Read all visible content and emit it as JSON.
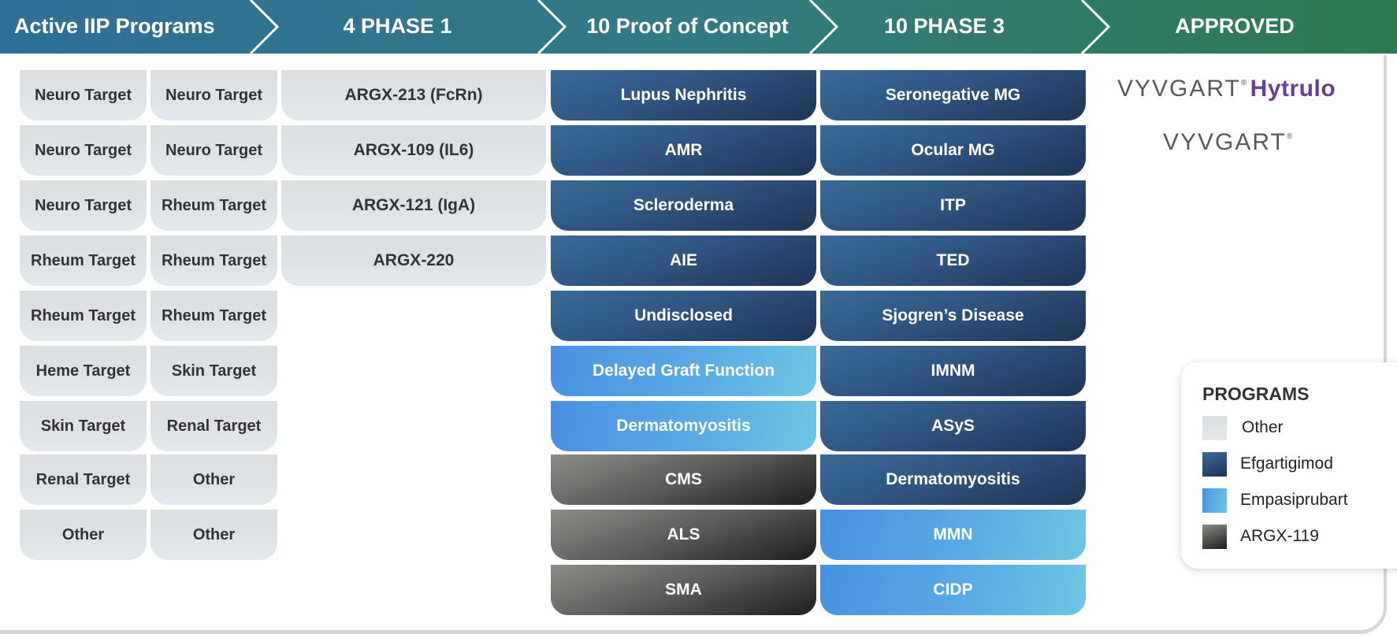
{
  "header": {
    "stages": [
      {
        "label": "Active IIP Programs"
      },
      {
        "label": "4 PHASE 1"
      },
      {
        "label": "10 Proof of Concept"
      },
      {
        "label": "10 PHASE 3"
      },
      {
        "label": "APPROVED"
      }
    ]
  },
  "iip_col1": [
    "Neuro Target",
    "Neuro Target",
    "Neuro Target",
    "Rheum Target",
    "Rheum Target",
    "Heme Target",
    "Skin Target",
    "Renal Target",
    "Other"
  ],
  "iip_col2": [
    "Neuro Target",
    "Neuro Target",
    "Rheum Target",
    "Rheum Target",
    "Rheum Target",
    "Skin Target",
    "Renal Target",
    "Other",
    "Other"
  ],
  "phase1": [
    "ARGX-213 (FcRn)",
    "ARGX-109 (IL6)",
    "ARGX-121 (IgA)",
    "ARGX-220"
  ],
  "poc": [
    {
      "label": "Lupus Nephritis",
      "program": "efg"
    },
    {
      "label": "AMR",
      "program": "efg"
    },
    {
      "label": "Scleroderma",
      "program": "efg"
    },
    {
      "label": "AIE",
      "program": "efg"
    },
    {
      "label": "Undisclosed",
      "program": "efg"
    },
    {
      "label": "Delayed Graft Function",
      "program": "emp"
    },
    {
      "label": "Dermatomyositis",
      "program": "emp"
    },
    {
      "label": "CMS",
      "program": "a119"
    },
    {
      "label": "ALS",
      "program": "a119"
    },
    {
      "label": "SMA",
      "program": "a119"
    }
  ],
  "phase3": [
    {
      "label": "Seronegative MG",
      "program": "efg"
    },
    {
      "label": "Ocular MG",
      "program": "efg"
    },
    {
      "label": "ITP",
      "program": "efg"
    },
    {
      "label": "TED",
      "program": "efg"
    },
    {
      "label": "Sjogren’s Disease",
      "program": "efg"
    },
    {
      "label": "IMNM",
      "program": "efg"
    },
    {
      "label": "ASyS",
      "program": "efg"
    },
    {
      "label": "Dermatomyositis",
      "program": "efg"
    },
    {
      "label": "MMN",
      "program": "emp"
    },
    {
      "label": "CIDP",
      "program": "emp"
    }
  ],
  "approved": {
    "logo1_word": "VYVGART",
    "logo1_suffix": "Hytrulo",
    "logo2_word": "VYVGART"
  },
  "legend": {
    "title": "PROGRAMS",
    "items": [
      {
        "label": "Other",
        "program": "other"
      },
      {
        "label": "Efgartigimod",
        "program": "efg"
      },
      {
        "label": "Empasiprubart",
        "program": "emp"
      },
      {
        "label": "ARGX-119",
        "program": "a119"
      }
    ]
  },
  "colors": {
    "header_start": "#2f6f97",
    "header_end": "#2e7a4f",
    "efgartigimod": "#2e5580",
    "empasiprubart": "#4a90e2",
    "argx119": "#4a4c49",
    "other": "#dde2e5",
    "logo_purple": "#6a3f8e",
    "logo_gray": "#555a60"
  }
}
